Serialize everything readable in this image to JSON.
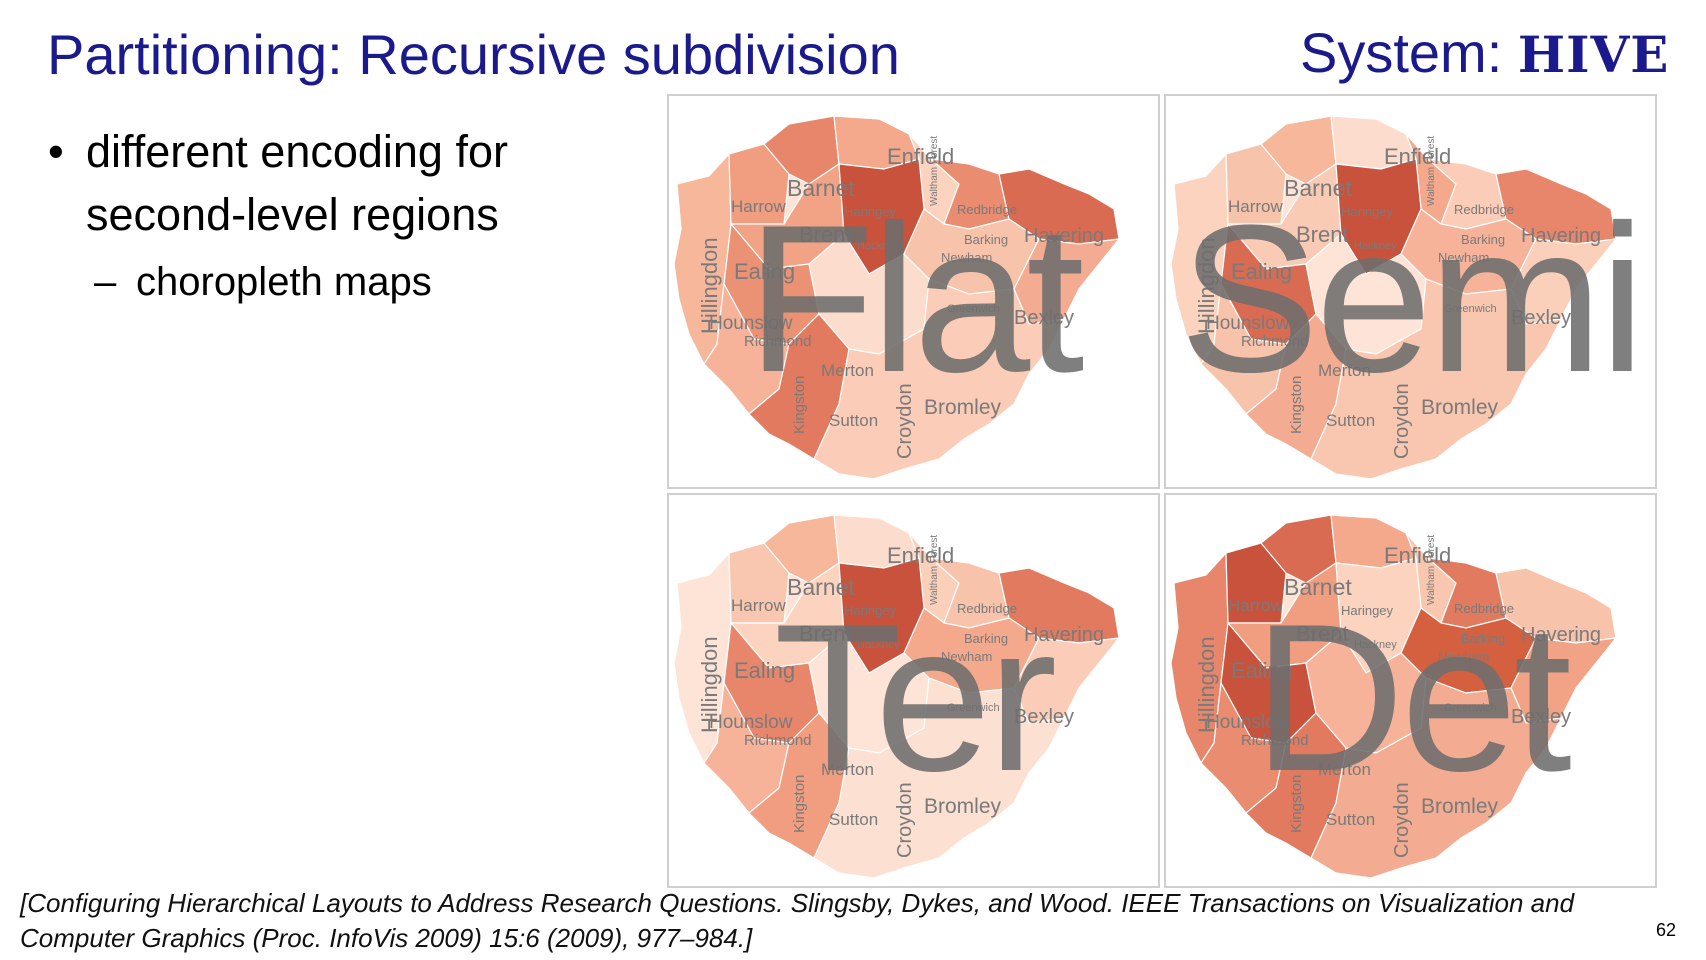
{
  "slide": {
    "title": "Partitioning: Recursive subdivision",
    "system_prefix": "System: ",
    "system_name": "HIVE",
    "bullets": [
      {
        "text": "different encoding for second-level regions",
        "sub": [
          "choropleth maps"
        ]
      }
    ],
    "citation": "[Configuring Hierarchical Layouts to Address Research Questions. Slingsby, Dykes, and Wood.  IEEE Transactions on Visualization and Computer Graphics (Proc. InfoVis 2009) 15:6 (2009), 977–984.]",
    "page_number": "62"
  },
  "maps": [
    {
      "label": "Flat",
      "colors": [
        "#f6b79a",
        "#f09d80",
        "#e8866b",
        "#f4a88c",
        "#fbd3bf",
        "#e98c70",
        "#d96b52",
        "#f2a386",
        "#c8523c",
        "#f8c3ab",
        "#eb9174",
        "#f6b39a",
        "#fcdccc",
        "#f3ac91",
        "#e27a5f",
        "#fbcdb8"
      ]
    },
    {
      "label": "Semi",
      "colors": [
        "#fbd3bf",
        "#f8c3ab",
        "#f6b79a",
        "#fcdccc",
        "#f4a88c",
        "#fbcdb8",
        "#e8866b",
        "#f9cbb4",
        "#c8523c",
        "#f6b39a",
        "#d96b52",
        "#f8c3ab",
        "#fde4d6",
        "#fad0bb",
        "#f3ac91",
        "#f9c7b0"
      ]
    },
    {
      "label": "Ter",
      "colors": [
        "#fde4d6",
        "#f9c7b0",
        "#f6b79a",
        "#fcdccc",
        "#fad0bb",
        "#f8c3ab",
        "#e27a5f",
        "#fbd3bf",
        "#c8523c",
        "#f4a88c",
        "#e8866b",
        "#f6b39a",
        "#fde4d6",
        "#fbcdb8",
        "#f09d80",
        "#fce0d2"
      ]
    },
    {
      "label": "Det",
      "colors": [
        "#e8866b",
        "#c8523c",
        "#d96b52",
        "#f4a88c",
        "#f9c7b0",
        "#e27a5f",
        "#f8c3ab",
        "#f09d80",
        "#fbd3bf",
        "#d4603f",
        "#c8523c",
        "#e98c70",
        "#f6b39a",
        "#f2a386",
        "#e27a5f",
        "#f3ac91"
      ]
    }
  ],
  "map_labels": [
    "Enfield",
    "Barnet",
    "Harrow",
    "Haringey",
    "Waltham Forest",
    "Redbridge",
    "Brent",
    "Hackney",
    "Barking",
    "Havering",
    "Hillingdon",
    "Ealing",
    "Newham",
    "Hounslow",
    "Richmond",
    "Greenwich",
    "Bexley",
    "Merton",
    "Kingston",
    "Croydon",
    "Sutton",
    "Bromley"
  ]
}
